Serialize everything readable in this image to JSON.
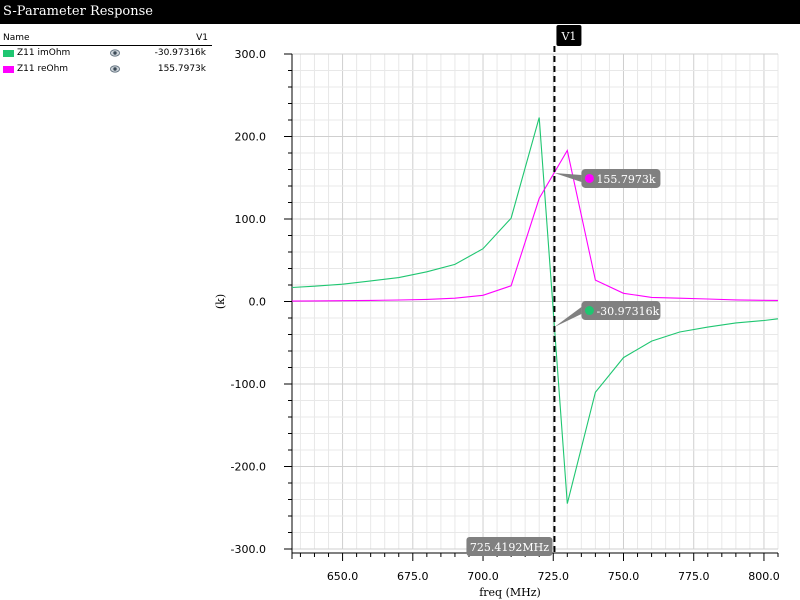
{
  "window": {
    "title": "S-Parameter Response"
  },
  "legend": {
    "name_header": "Name",
    "value_header": "V1",
    "items": [
      {
        "name": "Z11 imOhm",
        "value": "-30.97316k",
        "color": "#1fc671",
        "icon": "eye-icon"
      },
      {
        "name": "Z11 reOhm",
        "value": "155.7973k",
        "color": "#ff00ff",
        "icon": "eye-icon"
      }
    ]
  },
  "marker": {
    "label": "V1",
    "x": 725.4192,
    "x_readout": "725.4192MHz",
    "readouts": [
      {
        "series": "Z11 reOhm",
        "y": 155.7973,
        "text": "155.7973k"
      },
      {
        "series": "Z11 imOhm",
        "y": -30.97316,
        "text": "-30.97316k"
      }
    ]
  },
  "chart_data": {
    "type": "line",
    "xlabel": "freq (MHz)",
    "ylabel": "(k)",
    "xlim": [
      632,
      805
    ],
    "ylim": [
      -300,
      300
    ],
    "xticks": [
      650,
      675,
      700,
      725,
      750,
      775,
      800
    ],
    "xtick_labels": [
      "650.0",
      "675.0",
      "700.0",
      "725.0",
      "750.0",
      "775.0",
      "800.0"
    ],
    "yticks": [
      300,
      200,
      100,
      0,
      -100,
      -200,
      -300
    ],
    "ytick_labels": [
      "300.0",
      "200.0",
      "100.0",
      "0.0",
      "-100.0",
      "-200.0",
      "-300.0"
    ],
    "grid": true,
    "series": [
      {
        "name": "Z11 imOhm",
        "color": "#1fc671",
        "x": [
          632,
          640,
          650,
          660,
          670,
          680,
          690,
          700,
          710,
          720,
          730,
          740,
          750,
          760,
          770,
          780,
          790,
          800,
          805
        ],
        "y": [
          17,
          18.5,
          21,
          25,
          29,
          36,
          45,
          64,
          101,
          223,
          -245,
          -110,
          -68,
          -48,
          -37,
          -31,
          -26,
          -23,
          -21
        ]
      },
      {
        "name": "Z11 reOhm",
        "color": "#ff00ff",
        "x": [
          632,
          640,
          650,
          660,
          670,
          680,
          690,
          700,
          710,
          720,
          730,
          740,
          750,
          760,
          770,
          780,
          790,
          800,
          805
        ],
        "y": [
          0.5,
          0.7,
          1,
          1.3,
          1.8,
          2.6,
          4,
          7.5,
          19,
          125,
          183,
          26,
          10,
          5,
          4,
          3,
          2,
          1.5,
          1.3
        ]
      }
    ]
  }
}
